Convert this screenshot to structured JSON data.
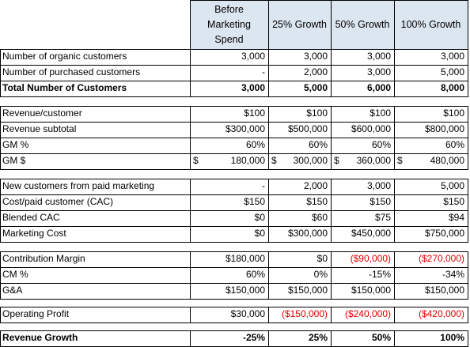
{
  "headers": [
    "Before Marketing Spend",
    "25% Growth",
    "50% Growth",
    "100% Growth"
  ],
  "sections": [
    {
      "rows": [
        {
          "label": "Number of organic customers",
          "values": [
            "3,000",
            "3,000",
            "3,000",
            "3,000"
          ]
        },
        {
          "label": "Number of purchased customers",
          "values": [
            "-",
            "2,000",
            "3,000",
            "5,000"
          ]
        },
        {
          "label": "Total Number of Customers",
          "values": [
            "3,000",
            "5,000",
            "6,000",
            "8,000"
          ],
          "bold": true
        }
      ]
    },
    {
      "rows": [
        {
          "label": "Revenue/customer",
          "values": [
            "$100",
            "$100",
            "$100",
            "$100"
          ]
        },
        {
          "label": "Revenue subtotal",
          "values": [
            "$300,000",
            "$500,000",
            "$600,000",
            "$800,000"
          ]
        },
        {
          "label": "GM %",
          "values": [
            "60%",
            "60%",
            "60%",
            "60%"
          ]
        },
        {
          "label": "GM $",
          "values": [
            "180,000",
            "300,000",
            "360,000",
            "480,000"
          ],
          "accounting": true,
          "currency_symbol": "$"
        }
      ]
    },
    {
      "rows": [
        {
          "label": "New customers from paid marketing",
          "values": [
            "-",
            "2,000",
            "3,000",
            "5,000"
          ]
        },
        {
          "label": "Cost/paid customer (CAC)",
          "values": [
            "$150",
            "$150",
            "$150",
            "$150"
          ]
        },
        {
          "label": "Blended CAC",
          "values": [
            "$0",
            "$60",
            "$75",
            "$94"
          ]
        },
        {
          "label": "Marketing Cost",
          "values": [
            "$0",
            "$300,000",
            "$450,000",
            "$750,000"
          ]
        }
      ]
    },
    {
      "rows": [
        {
          "label": "Contribution Margin",
          "values": [
            "$180,000",
            "$0",
            "($90,000)",
            "($270,000)"
          ]
        },
        {
          "label": "CM %",
          "values": [
            "60%",
            "0%",
            "-15%",
            "-34%"
          ]
        },
        {
          "label": "G&A",
          "values": [
            "$150,000",
            "$150,000",
            "$150,000",
            "$150,000"
          ]
        }
      ]
    },
    {
      "rows": [
        {
          "label": "Operating Profit",
          "values": [
            "$30,000",
            "($150,000)",
            "($240,000)",
            "($420,000)"
          ]
        }
      ]
    },
    {
      "rows": [
        {
          "label": "Revenue Growth",
          "values": [
            "-25%",
            "25%",
            "50%",
            "100%"
          ],
          "bold": true
        }
      ]
    }
  ],
  "colors": {
    "header_fill": "#dce6f1",
    "negative": "#e00000",
    "border": "#000000"
  }
}
